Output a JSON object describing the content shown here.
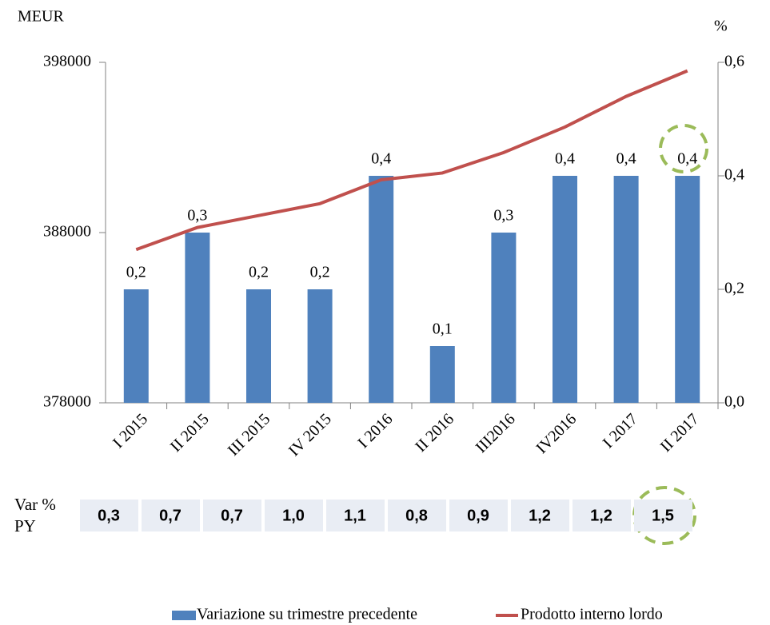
{
  "chart_data": {
    "type": "bar",
    "ylabel": "MEUR",
    "y2label": "%",
    "categories": [
      "I 2015",
      "II 2015",
      "III 2015",
      "IV 2015",
      "I 2016",
      "II 2016",
      "III2016",
      "IV2016",
      "I 2017",
      "II 2017"
    ],
    "ylim": [
      378000,
      398000
    ],
    "yticks": [
      378000,
      388000,
      398000
    ],
    "y2lim": [
      0,
      0.6
    ],
    "y2ticks": [
      {
        "value": 0,
        "label": "0,0"
      },
      {
        "value": 0.2,
        "label": "0,2"
      },
      {
        "value": 0.4,
        "label": "0,4"
      },
      {
        "value": 0.6,
        "label": "0,6"
      }
    ],
    "series": [
      {
        "name": "Variazione su trimestre precedente",
        "type": "bar",
        "axis": "y2",
        "color": "#4f81bd",
        "values": [
          0.2,
          0.3,
          0.2,
          0.2,
          0.4,
          0.1,
          0.3,
          0.4,
          0.4,
          0.4
        ],
        "value_labels": [
          "0,2",
          "0,3",
          "0,2",
          "0,2",
          "0,4",
          "0,1",
          "0,3",
          "0,4",
          "0,4",
          "0,4"
        ]
      },
      {
        "name": "Prodotto interno lordo",
        "type": "line",
        "color": "#c0504d",
        "values": [
          387000,
          388300,
          389000,
          389700,
          391100,
          391500,
          392700,
          394200,
          396000,
          397500
        ]
      }
    ],
    "legend": "bottom"
  },
  "table": {
    "label": "Var % PY",
    "values": [
      0.3,
      0.7,
      0.7,
      1.0,
      1.1,
      0.8,
      0.9,
      1.2,
      1.2,
      1.5
    ],
    "value_labels": [
      "0,3",
      "0,7",
      "0,7",
      "1,0",
      "1,1",
      "0,8",
      "0,9",
      "1,2",
      "1,2",
      "1,5"
    ]
  }
}
